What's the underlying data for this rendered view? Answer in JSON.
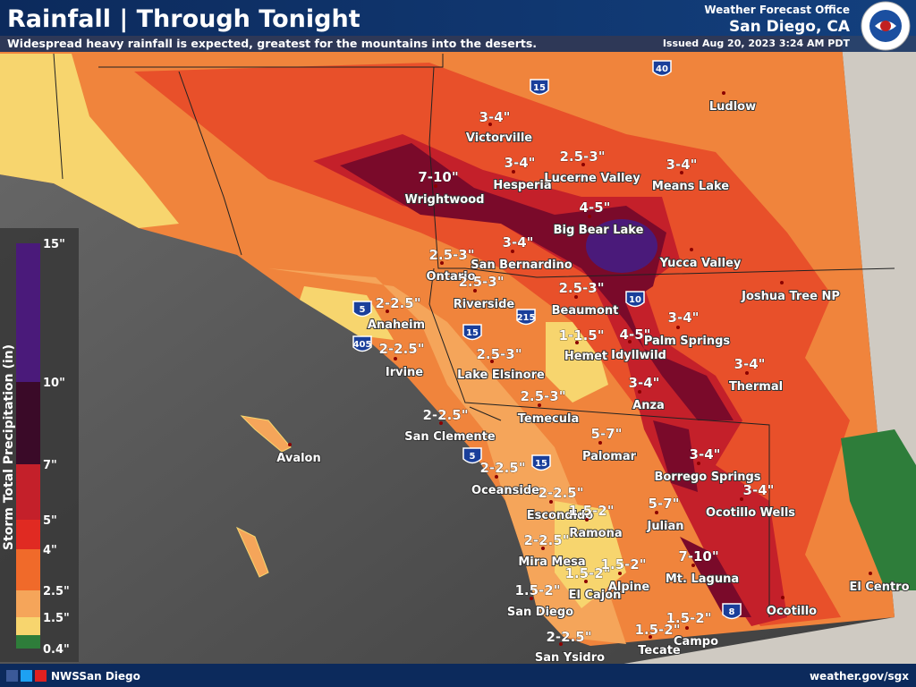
{
  "header": {
    "title": "Rainfall | Through Tonight",
    "subtitle": "Widespread heavy rainfall is expected, greatest for the mountains into the deserts.",
    "office": "Weather Forecast Office",
    "location": "San Diego, CA",
    "issued": "Issued Aug 20, 2023 3:24 AM PDT"
  },
  "legend": {
    "title": "Storm Total Precipitation (in)",
    "labels": [
      "15\"",
      "10\"",
      "7\"",
      "5\"",
      "4\"",
      "2.5\"",
      "1.5\"",
      "0.4\""
    ]
  },
  "map": {
    "amounts": [
      "3-4\"",
      "7-10\"",
      "3-4\"",
      "2.5-3\"",
      "3-4\"",
      "4-5\"",
      "3-4\"",
      "2.5-3\"",
      "2.5-3\"",
      "2.5-3\"",
      "2-2.5\"",
      "3-4\"",
      "1-1.5\"",
      "4-5\"",
      "2-2.5\"",
      "2.5-3\"",
      "3-4\"",
      "3-4\"",
      "2.5-3\"",
      "2-2.5\"",
      "5-7\"",
      "3-4\"",
      "2-2.5\"",
      "2-2.5\"",
      "3-4\"",
      "5-7\"",
      "1.5-2\"",
      "2-2.5\"",
      "7-10\"",
      "1.5-2\"",
      "1.5-2\"",
      "1.5-2\"",
      "1.5-2\"",
      "1.5-2\"",
      "2-2.5\""
    ],
    "places": [
      "Victorville",
      "Wrightwood",
      "Hesperia",
      "Lucerne Valley",
      "Means Lake",
      "Big Bear Lake",
      "Ludlow",
      "Yucca Valley",
      "San Bernardino",
      "Ontario",
      "Riverside",
      "Beaumont",
      "Joshua Tree NP",
      "Anaheim",
      "Palm Springs",
      "Hemet",
      "Idyllwild",
      "Irvine",
      "Lake Elsinore",
      "Thermal",
      "Anza",
      "Temecula",
      "San Clemente",
      "Avalon",
      "Palomar",
      "Borrego Springs",
      "Oceanside",
      "Escondido",
      "Ramona",
      "Ocotillo Wells",
      "Julian",
      "Mira Mesa",
      "Mt. Laguna",
      "El Cajon",
      "Alpine",
      "El Centro",
      "San Diego",
      "Ocotillo",
      "Campo",
      "Tecate",
      "San Ysidro"
    ],
    "highways": [
      "15",
      "40",
      "10",
      "215",
      "5",
      "405",
      "15",
      "5",
      "15",
      "8"
    ]
  },
  "footer": {
    "social": "NWSSan Diego",
    "url": "weather.gov/sgx"
  }
}
